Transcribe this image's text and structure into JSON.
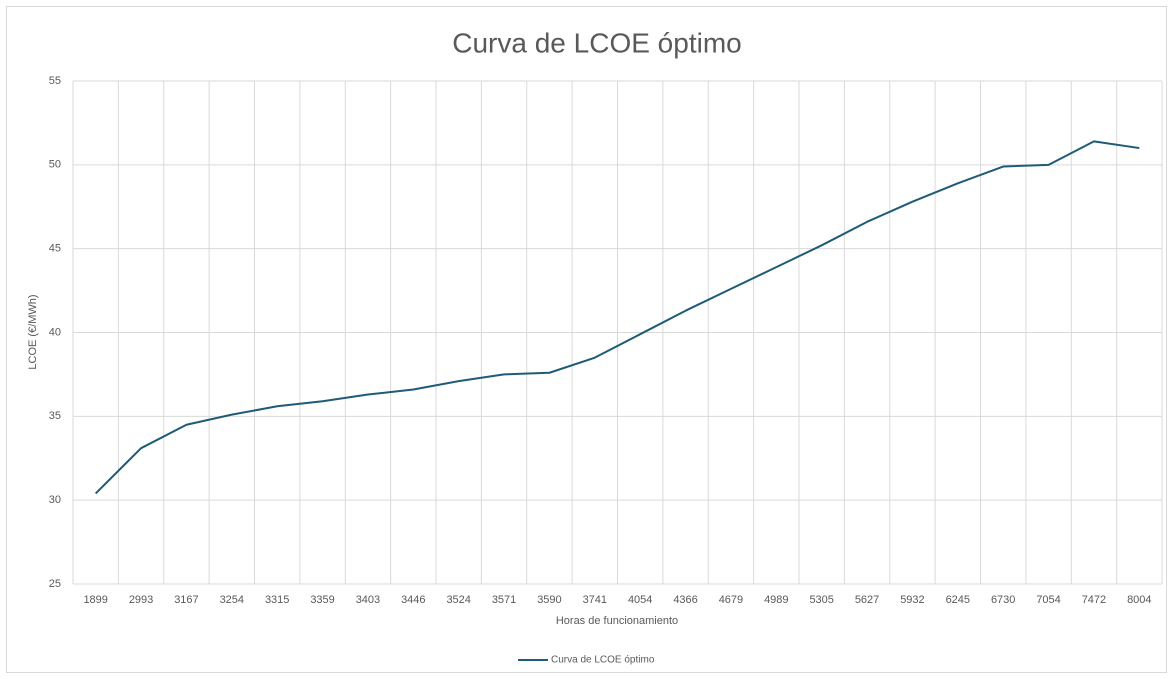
{
  "chart_data": {
    "type": "line",
    "title": "Curva de LCOE óptimo",
    "x_label": "Horas de funcionamiento",
    "y_label": "LCOE (€/MWh)",
    "categories": [
      "1899",
      "2993",
      "3167",
      "3254",
      "3315",
      "3359",
      "3403",
      "3446",
      "3524",
      "3571",
      "3590",
      "3741",
      "4054",
      "4366",
      "4679",
      "4989",
      "5305",
      "5627",
      "5932",
      "6245",
      "6730",
      "7054",
      "7472",
      "8004"
    ],
    "series": [
      {
        "name": "Curva de LCOE óptimo",
        "color": "#1e5b78",
        "values": [
          30.4,
          33.1,
          34.5,
          35.1,
          35.6,
          35.9,
          36.3,
          36.6,
          37.1,
          37.5,
          37.6,
          38.5,
          39.9,
          41.3,
          42.6,
          43.9,
          45.2,
          46.6,
          47.8,
          48.9,
          49.9,
          50.0,
          51.4,
          51.0
        ]
      }
    ],
    "ylim": [
      25,
      55
    ],
    "yticks": [
      25,
      30,
      35,
      40,
      45,
      50,
      55
    ],
    "grid": true,
    "legend": "bottom"
  }
}
